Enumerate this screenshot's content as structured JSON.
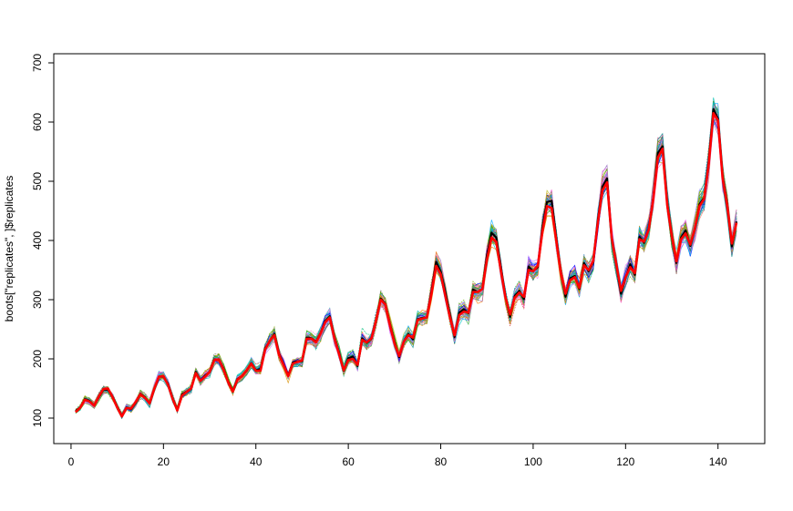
{
  "chart_data": {
    "type": "line",
    "ylabel": "boots[\"replicates\", ]$replicates",
    "xlabel": "",
    "title": "",
    "xlim": [
      1,
      144
    ],
    "ylim": [
      100,
      700
    ],
    "x_ticks": [
      "0",
      "20",
      "40",
      "60",
      "80",
      "100",
      "120",
      "140"
    ],
    "y_ticks": [
      "100",
      "200",
      "300",
      "400",
      "500",
      "600",
      "700"
    ],
    "grid": false,
    "legend": "none",
    "x": [
      1,
      2,
      3,
      4,
      5,
      6,
      7,
      8,
      9,
      10,
      11,
      12,
      13,
      14,
      15,
      16,
      17,
      18,
      19,
      20,
      21,
      22,
      23,
      24,
      25,
      26,
      27,
      28,
      29,
      30,
      31,
      32,
      33,
      34,
      35,
      36,
      37,
      38,
      39,
      40,
      41,
      42,
      43,
      44,
      45,
      46,
      47,
      48,
      49,
      50,
      51,
      52,
      53,
      54,
      55,
      56,
      57,
      58,
      59,
      60,
      61,
      62,
      63,
      64,
      65,
      66,
      67,
      68,
      69,
      70,
      71,
      72,
      73,
      74,
      75,
      76,
      77,
      78,
      79,
      80,
      81,
      82,
      83,
      84,
      85,
      86,
      87,
      88,
      89,
      90,
      91,
      92,
      93,
      94,
      95,
      96,
      97,
      98,
      99,
      100,
      101,
      102,
      103,
      104,
      105,
      106,
      107,
      108,
      109,
      110,
      111,
      112,
      113,
      114,
      115,
      116,
      117,
      118,
      119,
      120,
      121,
      122,
      123,
      124,
      125,
      126,
      127,
      128,
      129,
      130,
      131,
      132,
      133,
      134,
      135,
      136,
      137,
      138,
      139,
      140,
      141,
      142,
      143,
      144
    ],
    "series": [
      {
        "role": "original",
        "color": "#000000",
        "values": [
          112,
          118,
          132,
          129,
          121,
          135,
          148,
          148,
          136,
          119,
          104,
          118,
          115,
          126,
          141,
          135,
          125,
          149,
          170,
          170,
          158,
          133,
          114,
          140,
          145,
          150,
          178,
          163,
          172,
          178,
          199,
          199,
          184,
          162,
          146,
          166,
          171,
          180,
          193,
          181,
          183,
          218,
          230,
          242,
          209,
          191,
          172,
          194,
          196,
          196,
          236,
          235,
          229,
          243,
          264,
          272,
          237,
          211,
          180,
          201,
          204,
          188,
          235,
          227,
          234,
          264,
          302,
          293,
          259,
          229,
          203,
          229,
          242,
          233,
          267,
          269,
          270,
          315,
          364,
          347,
          312,
          274,
          237,
          278,
          284,
          277,
          317,
          313,
          318,
          374,
          413,
          405,
          355,
          306,
          271,
          306,
          315,
          301,
          356,
          348,
          355,
          422,
          465,
          467,
          404,
          347,
          305,
          336,
          340,
          318,
          362,
          348,
          363,
          435,
          491,
          505,
          404,
          359,
          310,
          337,
          360,
          342,
          406,
          396,
          420,
          472,
          548,
          559,
          463,
          407,
          362,
          405,
          417,
          391,
          419,
          461,
          472,
          535,
          622,
          606,
          508,
          461,
          390,
          432
        ]
      },
      {
        "role": "fitted",
        "color": "#ff0000",
        "values": [
          110,
          118,
          131,
          128,
          121,
          136,
          149,
          150,
          135,
          118,
          103,
          117,
          116,
          127,
          140,
          134,
          125,
          149,
          170,
          171,
          156,
          132,
          113,
          138,
          144,
          150,
          176,
          163,
          170,
          178,
          198,
          199,
          182,
          161,
          145,
          165,
          171,
          181,
          192,
          180,
          180,
          216,
          230,
          240,
          207,
          190,
          171,
          192,
          195,
          197,
          234,
          234,
          228,
          243,
          262,
          270,
          235,
          208,
          181,
          198,
          200,
          190,
          232,
          228,
          235,
          265,
          300,
          292,
          257,
          226,
          205,
          229,
          240,
          236,
          266,
          268,
          270,
          310,
          357,
          343,
          306,
          270,
          240,
          274,
          280,
          278,
          313,
          313,
          318,
          367,
          405,
          398,
          350,
          305,
          275,
          303,
          312,
          305,
          350,
          348,
          357,
          415,
          458,
          455,
          400,
          345,
          310,
          333,
          338,
          320,
          358,
          350,
          365,
          430,
          485,
          498,
          405,
          360,
          315,
          338,
          355,
          345,
          402,
          398,
          418,
          470,
          540,
          555,
          460,
          408,
          365,
          402,
          412,
          393,
          420,
          458,
          470,
          530,
          615,
          603,
          505,
          458,
          395,
          430
        ]
      }
    ],
    "replicate_colors": [
      "#1f77b4",
      "#ff7f0e",
      "#2ca02c",
      "#d62728",
      "#9467bd",
      "#8c564b",
      "#e377c2",
      "#17becf",
      "#bcbd22",
      "#7f7f7f",
      "#00bfc4",
      "#f8766d",
      "#7cae00",
      "#c77cff",
      "#00a9ff",
      "#e76bf3",
      "#39b600",
      "#ff61c3",
      "#00bf7d",
      "#d89000",
      "#9590ff",
      "#a3a500",
      "#00b0f6",
      "#fd61d1",
      "#6bb100",
      "#00c0af",
      "#ef67eb",
      "#e58700",
      "#0000ff",
      "#008b8b"
    ]
  }
}
